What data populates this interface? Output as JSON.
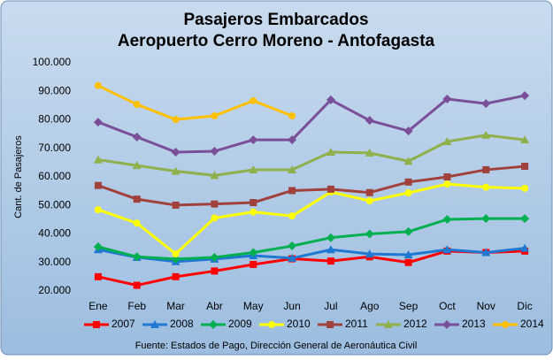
{
  "chart_data": {
    "type": "line",
    "title": "Pasajeros Embarcados",
    "subtitle": "Aeropuerto Cerro Moreno - Antofagasta",
    "y_label": "Cant. de Pasajeros",
    "footnote": "Fuente: Estados de Pago, Dirección General de Aeronáutica Civil",
    "categories": [
      "Ene",
      "Feb",
      "Mar",
      "Abr",
      "May",
      "Jun",
      "Jul",
      "Ago",
      "Sep",
      "Oct",
      "Nov",
      "Dic"
    ],
    "ylim": [
      20000,
      100000
    ],
    "yticks": [
      {
        "value": 20000,
        "label": "20.000"
      },
      {
        "value": 30000,
        "label": "30.000"
      },
      {
        "value": 40000,
        "label": "40.000"
      },
      {
        "value": 50000,
        "label": "50.000"
      },
      {
        "value": 60000,
        "label": "60.000"
      },
      {
        "value": 70000,
        "label": "70.000"
      },
      {
        "value": 80000,
        "label": "80.000"
      },
      {
        "value": 90000,
        "label": "90.000"
      },
      {
        "value": 100000,
        "label": "100.000"
      }
    ],
    "grid": false,
    "legend": "bottom",
    "series": [
      {
        "name": "2007",
        "color": "#ff0000",
        "marker": "square",
        "values": [
          25000,
          22000,
          25000,
          27000,
          29300,
          31300,
          30500,
          32000,
          30000,
          34000,
          33500,
          34000
        ]
      },
      {
        "name": "2008",
        "color": "#1f78d1",
        "marker": "triangle",
        "values": [
          34500,
          31800,
          30300,
          31200,
          32400,
          31500,
          34500,
          33000,
          32700,
          34500,
          33500,
          35000
        ]
      },
      {
        "name": "2009",
        "color": "#00b050",
        "marker": "diamond",
        "values": [
          35500,
          32000,
          31200,
          31800,
          33500,
          35800,
          38700,
          40000,
          40800,
          45100,
          45400,
          45400
        ]
      },
      {
        "name": "2010",
        "color": "#ffff00",
        "marker": "circle",
        "values": [
          48500,
          43800,
          33000,
          45600,
          47700,
          46300,
          54700,
          51600,
          54400,
          57500,
          56400,
          56000
        ]
      },
      {
        "name": "2011",
        "color": "#a0413c",
        "marker": "square",
        "values": [
          57000,
          52200,
          50100,
          50500,
          51000,
          55200,
          55700,
          54500,
          58200,
          60000,
          62500,
          63700
        ]
      },
      {
        "name": "2012",
        "color": "#8fb04a",
        "marker": "triangle",
        "values": [
          66000,
          64000,
          62000,
          60500,
          62500,
          62500,
          68700,
          68400,
          65500,
          72400,
          74600,
          73000
        ]
      },
      {
        "name": "2013",
        "color": "#7a4f9a",
        "marker": "diamond",
        "values": [
          79200,
          74000,
          68700,
          69000,
          73000,
          73000,
          87000,
          79800,
          76100,
          87300,
          85700,
          88500
        ]
      },
      {
        "name": "2014",
        "color": "#ffc000",
        "marker": "circle",
        "values": [
          92000,
          85400,
          80100,
          81400,
          86700,
          81400,
          null,
          null,
          null,
          null,
          null,
          null
        ]
      }
    ]
  }
}
